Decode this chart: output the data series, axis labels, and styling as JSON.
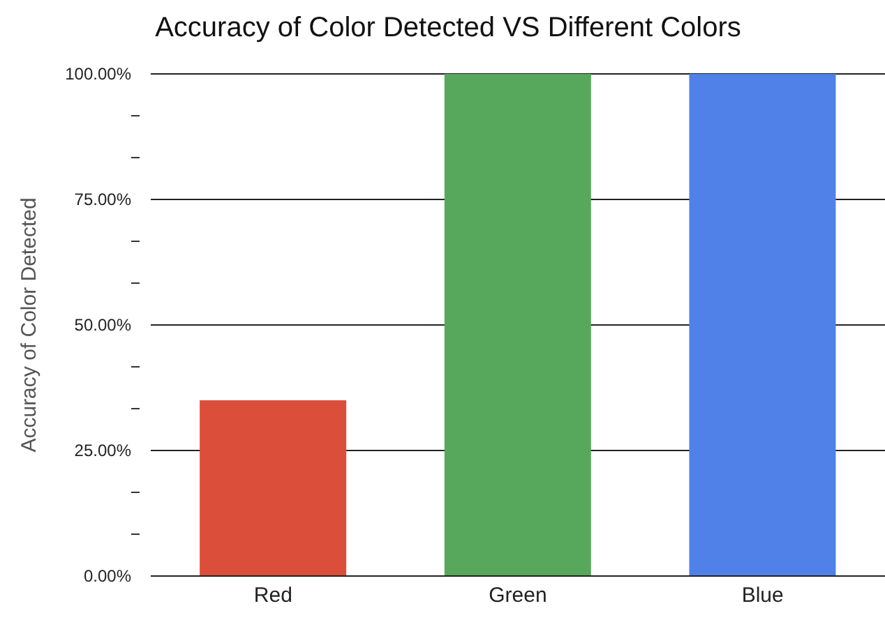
{
  "chart_data": {
    "type": "bar",
    "title": "Accuracy of Color Detected VS Different Colors",
    "ylabel": "Accuracy of Color Detected",
    "categories": [
      "Red",
      "Green",
      "Blue"
    ],
    "values": [
      35,
      100,
      100
    ],
    "colors": [
      "#db4f3a",
      "#57a85c",
      "#4f81e8"
    ],
    "ylim": [
      0,
      100
    ],
    "yticks": [
      {
        "value": 0,
        "label": "0.00%"
      },
      {
        "value": 8.33,
        "label": null
      },
      {
        "value": 16.67,
        "label": null
      },
      {
        "value": 25,
        "label": "25.00%"
      },
      {
        "value": 33.33,
        "label": null
      },
      {
        "value": 41.67,
        "label": null
      },
      {
        "value": 50,
        "label": "50.00%"
      },
      {
        "value": 58.33,
        "label": null
      },
      {
        "value": 66.67,
        "label": null
      },
      {
        "value": 75,
        "label": "75.00%"
      },
      {
        "value": 83.33,
        "label": null
      },
      {
        "value": 91.67,
        "label": null
      },
      {
        "value": 100,
        "label": "100.00%"
      }
    ],
    "grid": "y",
    "legend": false
  }
}
